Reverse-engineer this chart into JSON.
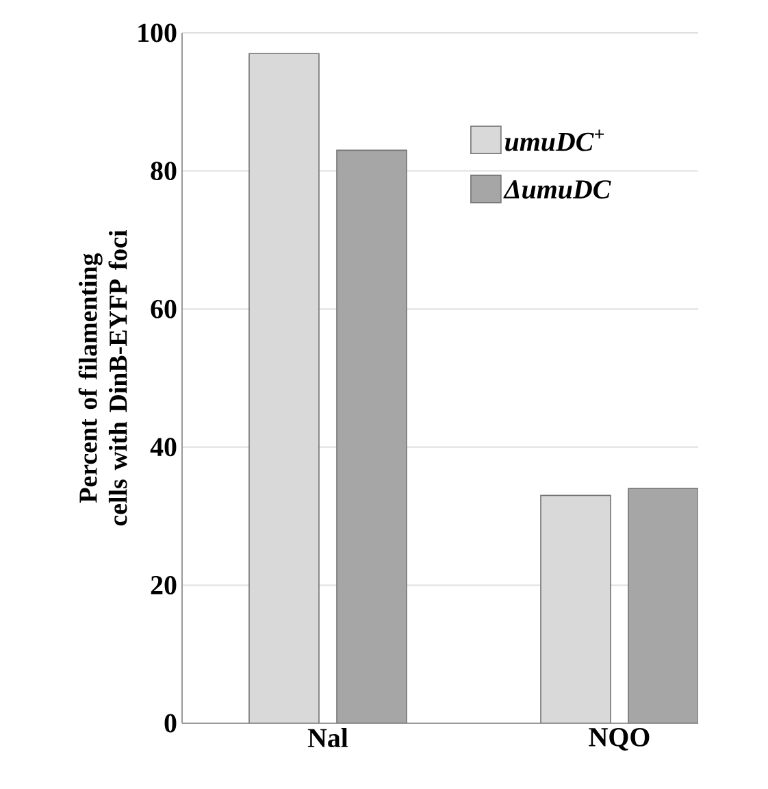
{
  "chart_data": {
    "type": "bar",
    "ylabel": "Percent of filamenting cells with DinB-EYFP foci",
    "categories": [
      "Nal",
      "NQO"
    ],
    "series": [
      {
        "name": "*umuDC*$^{+}$",
        "color": "#d9d9d9",
        "values": [
          97,
          33
        ]
      },
      {
        "name": "ΔumuDC",
        "color": "#a6a6a6",
        "values": [
          83,
          34
        ]
      }
    ],
    "ylim": [
      0,
      100
    ],
    "yticks": [
      0,
      20,
      40,
      60,
      80,
      100
    ],
    "grid": "y",
    "legend": "top right"
  }
}
